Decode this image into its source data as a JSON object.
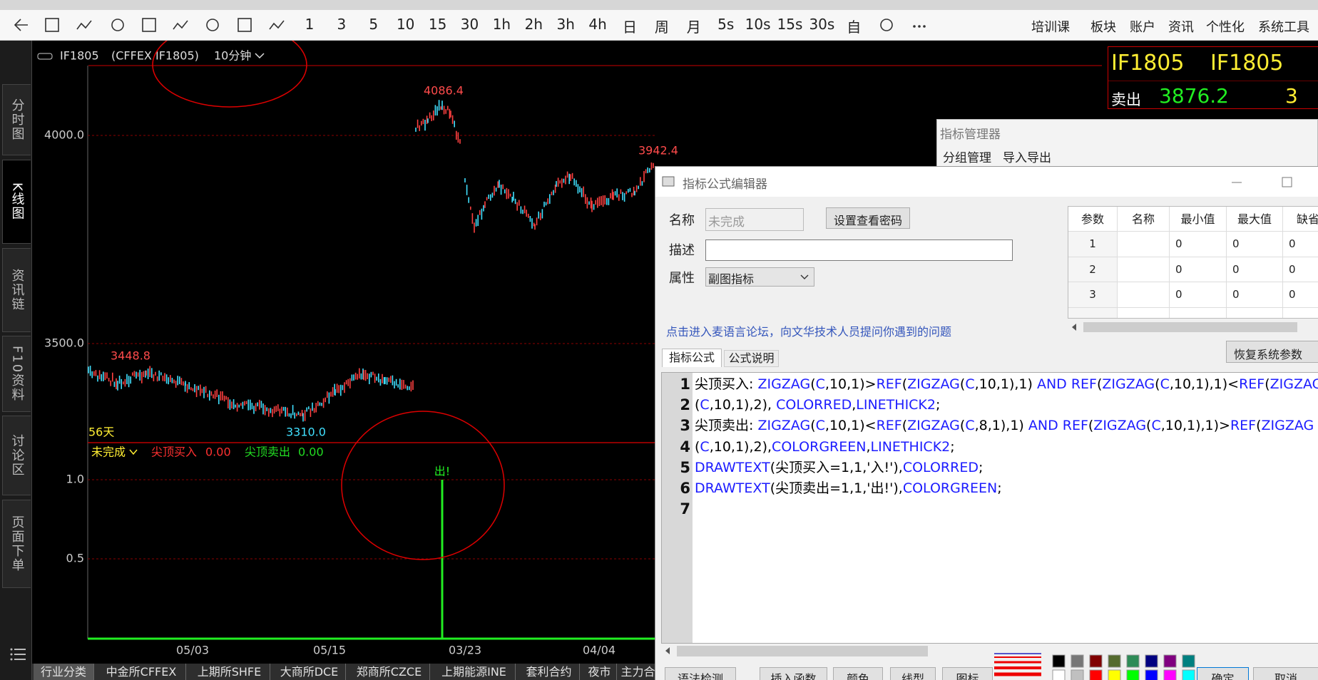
{
  "toolbar": {
    "periods": [
      "1",
      "3",
      "5",
      "10",
      "15",
      "30",
      "1h",
      "2h",
      "3h",
      "4h",
      "日",
      "周",
      "月",
      "5s",
      "10s",
      "15s",
      "30s",
      "自"
    ],
    "menu": [
      "培训课",
      "板块",
      "账户",
      "资讯",
      "个性化",
      "系统工具"
    ]
  },
  "sidebar": {
    "tabs": [
      "分时图",
      "K线图",
      "资讯链",
      "F10资料",
      "讨论区",
      "页面下单"
    ]
  },
  "chart": {
    "symbol": "IF1805",
    "exchange": "(CFFEX IF1805)",
    "period": "10分钟",
    "price_axis": [
      "4000.0",
      "3500.0"
    ],
    "price_labels": {
      "high": "4086.4",
      "peak": "3942.4",
      "start": "3448.8",
      "low": "3310.0"
    },
    "days": "56天",
    "indicator": {
      "name": "未完成",
      "buy": "尖顶买入",
      "buy_value": "0.00",
      "sell": "尖顶卖出",
      "sell_value": "0.00"
    },
    "signal": "出!",
    "sub_axis": [
      "1.0",
      "0.5"
    ],
    "dates": [
      "05/03",
      "05/15",
      "03/23",
      "04/04"
    ]
  },
  "quote": {
    "code": "IF1805",
    "name": "IF1805",
    "side": "卖出",
    "price": "3876.2",
    "qty": "3"
  },
  "manager": {
    "title": "指标管理器",
    "menu": [
      "分组管理",
      "导入导出"
    ]
  },
  "editor": {
    "title": "指标公式编辑器",
    "name_label": "名称",
    "name_value": "未完成",
    "password_button": "设置查看密码",
    "desc_label": "描述",
    "attr_label": "属性",
    "attr_value": "副图指标",
    "forum_link": "点击进入麦语言论坛，向文华技术人员提问你遇到的问题",
    "params": {
      "headers": [
        "参数",
        "名称",
        "最小值",
        "最大值",
        "缺省"
      ],
      "rows": [
        {
          "index": "1",
          "min": "0",
          "max": "0",
          "default": "0"
        },
        {
          "index": "2",
          "min": "0",
          "max": "0",
          "default": "0"
        },
        {
          "index": "3",
          "min": "0",
          "max": "0",
          "default": "0"
        }
      ]
    },
    "tabs": [
      "指标公式",
      "公式说明"
    ],
    "restore_button": "恢复系统参数",
    "code": [
      {
        "line": "1",
        "tokens": [
          [
            "尖顶买入: ",
            "k"
          ],
          [
            "ZIGZAG",
            "f"
          ],
          [
            "(",
            "k"
          ],
          [
            "C",
            "f"
          ],
          [
            ",10,1)>",
            "k"
          ],
          [
            "REF",
            "f"
          ],
          [
            "(",
            "k"
          ],
          [
            "ZIGZAG",
            "f"
          ],
          [
            "(",
            "k"
          ],
          [
            "C",
            "f"
          ],
          [
            ",10,1),1) ",
            "k"
          ],
          [
            "AND REF",
            "f"
          ],
          [
            "(",
            "k"
          ],
          [
            "ZIGZAG",
            "f"
          ],
          [
            "(",
            "k"
          ],
          [
            "C",
            "f"
          ],
          [
            ",10,1),1)<",
            "k"
          ],
          [
            "REF",
            "f"
          ],
          [
            "(",
            "k"
          ],
          [
            "ZIGZAG",
            "f"
          ]
        ]
      },
      {
        "line": "2",
        "tokens": [
          [
            "(",
            "k"
          ],
          [
            "C",
            "f"
          ],
          [
            ",10,1),2), ",
            "k"
          ],
          [
            "COLORRED",
            "f"
          ],
          [
            ",",
            "k"
          ],
          [
            "LINETHICK2",
            "f"
          ],
          [
            ";",
            "k"
          ]
        ]
      },
      {
        "line": "3",
        "tokens": [
          [
            "尖顶卖出: ",
            "k"
          ],
          [
            "ZIGZAG",
            "f"
          ],
          [
            "(",
            "k"
          ],
          [
            "C",
            "f"
          ],
          [
            ",10,1)<",
            "k"
          ],
          [
            "REF",
            "f"
          ],
          [
            "(",
            "k"
          ],
          [
            "ZIGZAG",
            "f"
          ],
          [
            "(",
            "k"
          ],
          [
            "C",
            "f"
          ],
          [
            ",8,1),1) ",
            "k"
          ],
          [
            "AND REF",
            "f"
          ],
          [
            "(",
            "k"
          ],
          [
            "ZIGZAG",
            "f"
          ],
          [
            "(",
            "k"
          ],
          [
            "C",
            "f"
          ],
          [
            ",10,1),1)>",
            "k"
          ],
          [
            "REF",
            "f"
          ],
          [
            "(",
            "k"
          ],
          [
            "ZIGZAG",
            "f"
          ]
        ]
      },
      {
        "line": "4",
        "tokens": [
          [
            "(",
            "k"
          ],
          [
            "C",
            "f"
          ],
          [
            ",10,1),2),",
            "k"
          ],
          [
            "COLORGREEN",
            "f"
          ],
          [
            ",",
            "k"
          ],
          [
            "LINETHICK2",
            "f"
          ],
          [
            ";",
            "k"
          ]
        ]
      },
      {
        "line": "5",
        "tokens": [
          [
            "DRAWTEXT",
            "f"
          ],
          [
            "(尖顶买入=1,1,'入!'),",
            "k"
          ],
          [
            "COLORRED",
            "f"
          ],
          [
            ";",
            "k"
          ]
        ]
      },
      {
        "line": "6",
        "tokens": [
          [
            "DRAWTEXT",
            "f"
          ],
          [
            "(尖顶卖出=1,1,'出!'),",
            "k"
          ],
          [
            "COLORGREEN",
            "f"
          ],
          [
            ";",
            "k"
          ]
        ]
      },
      {
        "line": "7",
        "tokens": []
      }
    ],
    "buttons": [
      "语法检测",
      "插入函数",
      "颜色",
      "线型",
      "图标"
    ],
    "confirm": "确定",
    "cancel": "取消"
  },
  "market_tabs": [
    "行业分类",
    "中金所CFFEX",
    "上期所SHFE",
    "大商所DCE",
    "郑商所CZCE",
    "上期能源INE",
    "套利合约",
    "夜市",
    "主力合"
  ]
}
